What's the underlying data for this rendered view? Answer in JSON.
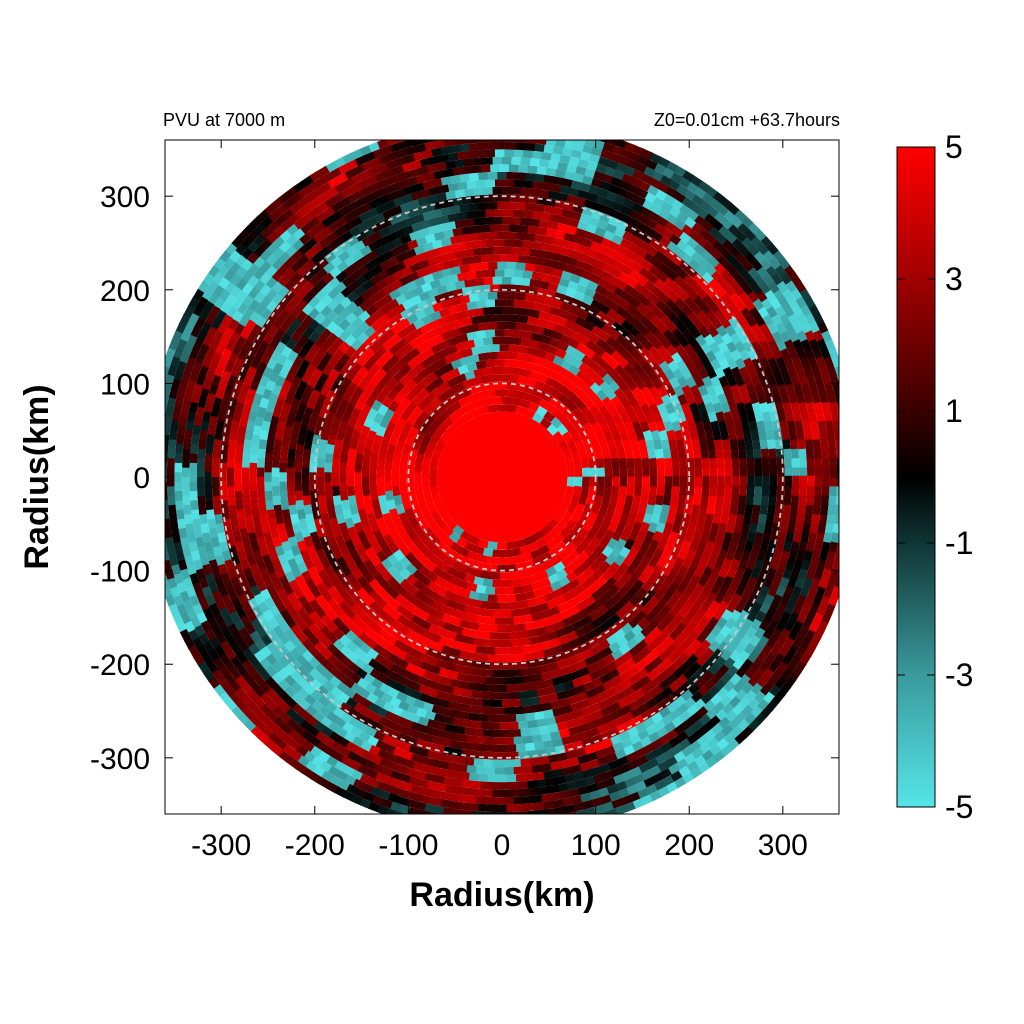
{
  "chart_data": {
    "type": "heatmap",
    "title_left": "PVU at  7000 m",
    "title_right": "Z0=0.01cm  +63.7hours",
    "xlabel": "Radius(km)",
    "ylabel": "Radius(km)",
    "xlim": [
      -360,
      360
    ],
    "ylim": [
      -360,
      360
    ],
    "xticks": [
      -300,
      -200,
      -100,
      0,
      100,
      200,
      300
    ],
    "yticks": [
      300,
      200,
      100,
      0,
      -100,
      -200,
      -300
    ],
    "domain_radius_km": 380,
    "reference_circles_km": [
      100,
      200,
      300
    ],
    "colorbar": {
      "range": [
        -5,
        5
      ],
      "ticks": [
        5,
        3,
        1,
        -1,
        -3,
        -5
      ],
      "colors": {
        "low": "#55e5e8",
        "mid": "#000000",
        "high": "#ff0000"
      }
    },
    "field_structure": {
      "core_value": 5,
      "core_radius_km": 70,
      "description_bands": [
        {
          "r_km": [
            0,
            70
          ],
          "value": 5
        },
        {
          "r_km": [
            70,
            200
          ],
          "value": 4
        },
        {
          "r_km": [
            200,
            300
          ],
          "value": 2.5
        },
        {
          "r_km": [
            300,
            380
          ],
          "value": 1
        }
      ]
    }
  }
}
